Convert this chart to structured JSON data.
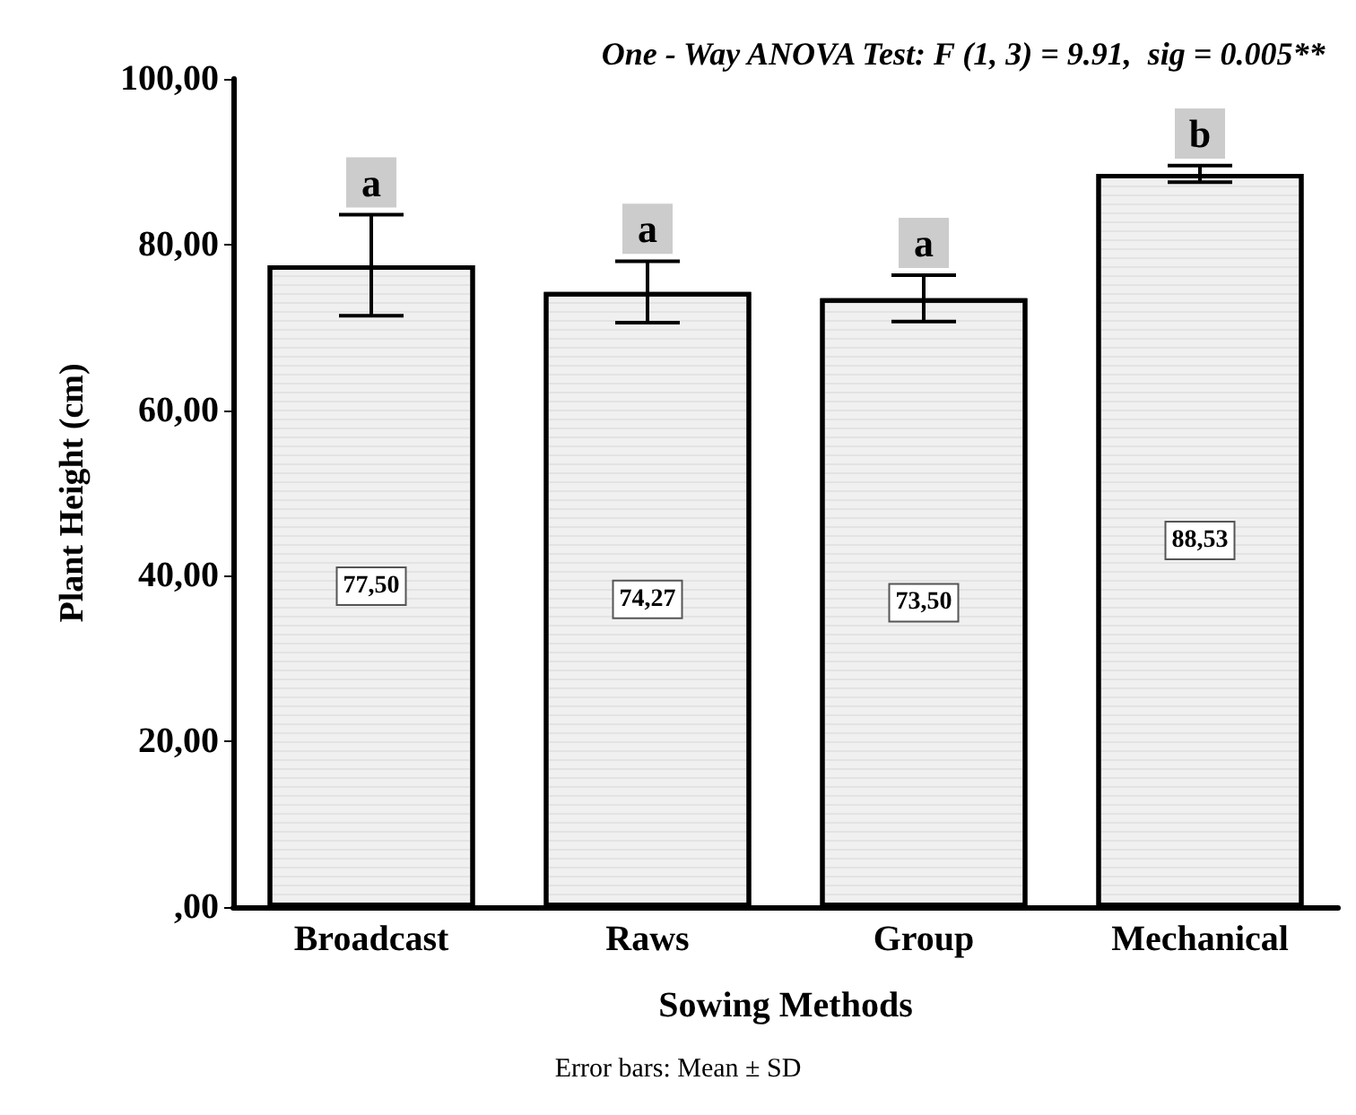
{
  "chart_data": {
    "type": "bar",
    "title": "One - Way ANOVA Test: F (1, 3) = 9.91,  sig = 0.005**",
    "xlabel": "Sowing Methods",
    "ylabel": "Plant Height (cm)",
    "categories": [
      "Broadcast",
      "Raws",
      "Group",
      "Mechanical"
    ],
    "values": [
      77.5,
      74.27,
      73.5,
      88.53
    ],
    "value_labels": [
      "77,50",
      "74,27",
      "73,50",
      "88,53"
    ],
    "errors": [
      6.1,
      3.7,
      2.8,
      1.0
    ],
    "color": "#f0f0f0",
    "ylim": [
      0,
      100
    ],
    "yticks": [
      {
        "value": 0,
        "label": ",00"
      },
      {
        "value": 20,
        "label": "20,00"
      },
      {
        "value": 40,
        "label": "40,00"
      },
      {
        "value": 60,
        "label": "60,00"
      },
      {
        "value": 80,
        "label": "80,00"
      },
      {
        "value": 100,
        "label": "100,00"
      }
    ],
    "grid": false,
    "annotations": [
      {
        "text": "a",
        "x": "Broadcast",
        "y": 83.6
      },
      {
        "text": "a",
        "x": "Raws",
        "y": 78.0
      },
      {
        "text": "a",
        "x": "Group",
        "y": 76.3
      },
      {
        "text": "b",
        "x": "Mechanical",
        "y": 89.5
      },
      "Error bars: Mean ± SD"
    ]
  }
}
